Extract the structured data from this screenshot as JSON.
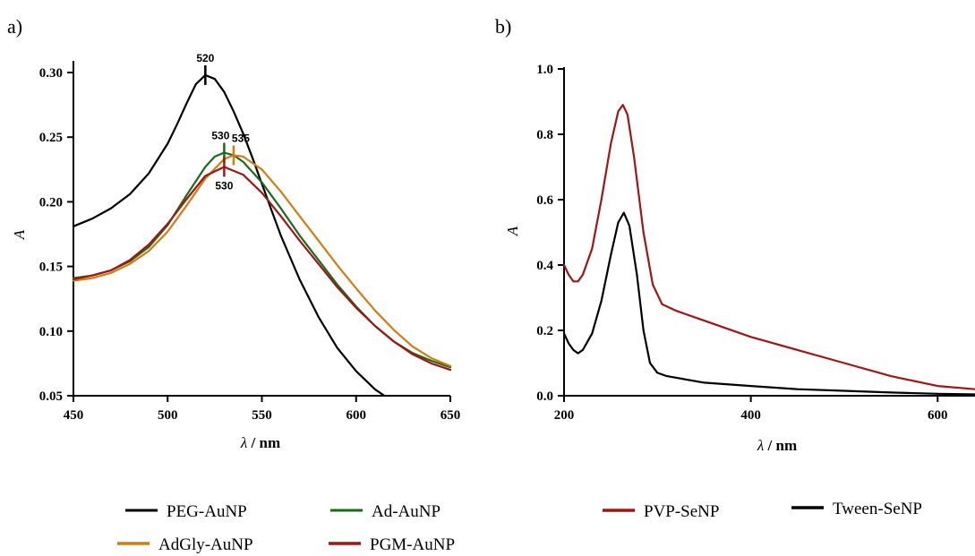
{
  "chart_data": [
    {
      "panel_label": "a)",
      "type": "line",
      "xlabel_symbol": "λ",
      "xlabel_unit": " / nm",
      "ylabel": "A",
      "xlim": [
        450,
        650
      ],
      "ylim": [
        0.05,
        0.3
      ],
      "xticks": [
        450,
        500,
        550,
        600,
        650
      ],
      "yticks": [
        0.05,
        0.1,
        0.15,
        0.2,
        0.25,
        0.3
      ],
      "ytick_labels": [
        "0.05",
        "0.10",
        "0.15",
        "0.20",
        "0.25",
        "0.30"
      ],
      "grid": false,
      "series": [
        {
          "name": "PEG-AuNP",
          "color": "#000000",
          "x": [
            450,
            460,
            470,
            480,
            490,
            500,
            505,
            510,
            515,
            520,
            525,
            530,
            535,
            540,
            545,
            550,
            555,
            560,
            570,
            580,
            590,
            600,
            610,
            615
          ],
          "y": [
            0.181,
            0.187,
            0.195,
            0.206,
            0.222,
            0.245,
            0.26,
            0.276,
            0.291,
            0.298,
            0.295,
            0.285,
            0.27,
            0.253,
            0.234,
            0.214,
            0.194,
            0.174,
            0.14,
            0.111,
            0.087,
            0.069,
            0.055,
            0.05
          ]
        },
        {
          "name": "Ad-AuNP",
          "color": "#1a6b1a",
          "x": [
            450,
            460,
            470,
            480,
            490,
            500,
            510,
            520,
            525,
            530,
            535,
            540,
            550,
            560,
            570,
            580,
            590,
            600,
            610,
            620,
            630,
            640,
            650
          ],
          "y": [
            0.141,
            0.143,
            0.147,
            0.154,
            0.165,
            0.182,
            0.205,
            0.227,
            0.235,
            0.238,
            0.236,
            0.231,
            0.215,
            0.195,
            0.174,
            0.155,
            0.136,
            0.119,
            0.104,
            0.092,
            0.083,
            0.077,
            0.072
          ]
        },
        {
          "name": "AdGly-AuNP",
          "color": "#d27d12",
          "x": [
            450,
            460,
            470,
            480,
            490,
            500,
            510,
            520,
            530,
            535,
            540,
            550,
            560,
            570,
            580,
            590,
            600,
            610,
            620,
            630,
            640,
            650
          ],
          "y": [
            0.139,
            0.141,
            0.145,
            0.152,
            0.162,
            0.177,
            0.197,
            0.218,
            0.233,
            0.236,
            0.235,
            0.225,
            0.208,
            0.189,
            0.17,
            0.151,
            0.133,
            0.116,
            0.101,
            0.088,
            0.079,
            0.073
          ]
        },
        {
          "name": "PGM-AuNP",
          "color": "#a01515",
          "x": [
            450,
            460,
            470,
            480,
            490,
            500,
            510,
            520,
            530,
            540,
            550,
            560,
            570,
            580,
            590,
            600,
            610,
            620,
            630,
            640,
            650
          ],
          "y": [
            0.14,
            0.143,
            0.147,
            0.155,
            0.167,
            0.183,
            0.202,
            0.22,
            0.227,
            0.221,
            0.207,
            0.189,
            0.17,
            0.152,
            0.134,
            0.118,
            0.104,
            0.092,
            0.082,
            0.075,
            0.07
          ]
        }
      ],
      "annotations": [
        {
          "text": "520",
          "x": 520,
          "y": 0.298,
          "position": "above",
          "color": "#000000"
        },
        {
          "text": "530",
          "x": 530,
          "y": 0.238,
          "position": "above",
          "color": "#1a6b1a"
        },
        {
          "text": "535",
          "x": 535,
          "y": 0.236,
          "position": "above-right",
          "color": "#d27d12"
        },
        {
          "text": "530",
          "x": 530,
          "y": 0.227,
          "position": "below",
          "color": "#a01515"
        }
      ],
      "legend": {
        "placement": "bottom",
        "entries": [
          {
            "name": "PEG-AuNP",
            "color": "#000000"
          },
          {
            "name": "Ad-AuNP",
            "color": "#1a6b1a"
          },
          {
            "name": "AdGly-AuNP",
            "color": "#d27d12"
          },
          {
            "name": "PGM-AuNP",
            "color": "#a01515"
          }
        ]
      }
    },
    {
      "panel_label": "b)",
      "type": "line",
      "xlabel_symbol": "λ",
      "xlabel_unit": " / nm",
      "ylabel": "A",
      "xlim": [
        200,
        640
      ],
      "ylim": [
        0,
        1.0
      ],
      "xticks": [
        200,
        400,
        600
      ],
      "yticks": [
        0,
        0.2,
        0.4,
        0.6,
        0.8,
        1.0
      ],
      "ytick_labels": [
        "0.0",
        "0.2",
        "0.4",
        "0.6",
        "0.8",
        "1.0"
      ],
      "grid": false,
      "series": [
        {
          "name": "PVP-SeNP",
          "color": "#a01515",
          "x": [
            200,
            205,
            210,
            215,
            220,
            230,
            240,
            250,
            258,
            263,
            268,
            275,
            285,
            295,
            305,
            320,
            350,
            400,
            450,
            500,
            550,
            600,
            640
          ],
          "y": [
            0.4,
            0.37,
            0.35,
            0.35,
            0.37,
            0.45,
            0.6,
            0.77,
            0.87,
            0.89,
            0.86,
            0.73,
            0.5,
            0.34,
            0.28,
            0.26,
            0.23,
            0.18,
            0.14,
            0.1,
            0.06,
            0.03,
            0.02
          ]
        },
        {
          "name": "Tween-SeNP",
          "color": "#000000",
          "x": [
            200,
            205,
            210,
            215,
            220,
            230,
            240,
            250,
            258,
            264,
            270,
            278,
            285,
            292,
            300,
            310,
            350,
            400,
            450,
            500,
            550,
            600,
            640
          ],
          "y": [
            0.19,
            0.16,
            0.14,
            0.13,
            0.14,
            0.19,
            0.29,
            0.43,
            0.53,
            0.56,
            0.52,
            0.37,
            0.2,
            0.1,
            0.07,
            0.06,
            0.04,
            0.03,
            0.02,
            0.015,
            0.01,
            0.006,
            0.004
          ]
        }
      ],
      "legend": {
        "placement": "bottom",
        "entries": [
          {
            "name": "PVP-SeNP",
            "color": "#a01515"
          },
          {
            "name": "Tween-SeNP",
            "color": "#000000"
          }
        ]
      }
    }
  ]
}
